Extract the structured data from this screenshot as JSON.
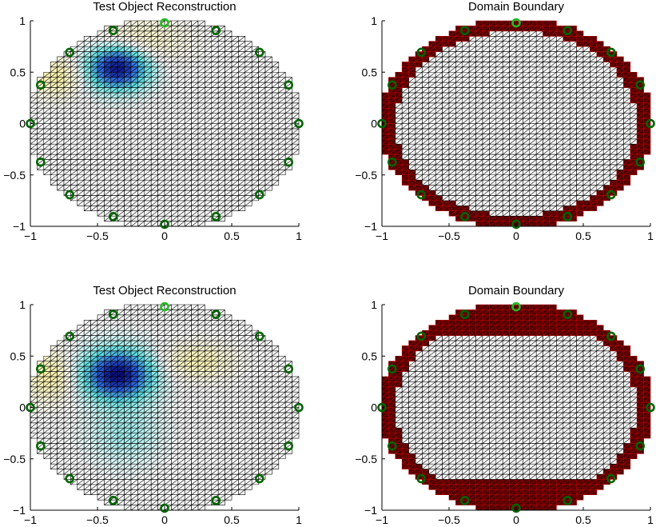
{
  "colors": {
    "mesh": "#000000",
    "boundary_fill": "#4d0000",
    "boundary_mesh": "#b00000",
    "electrode_ring": "#006400",
    "electrode_ring_active": "#22bb22",
    "inclusion_core": "#0a0a80",
    "inclusion_mid": "#2a5fd8",
    "inclusion_edge": "#5fe0e0",
    "positive_lobe": "#fff3a8"
  },
  "chart_data": [
    {
      "type": "mesh",
      "id": "plot-top-left",
      "title": "Test Object Reconstruction",
      "xlim": [
        -1,
        1
      ],
      "ylim": [
        -1,
        1
      ],
      "xticks": [
        -1,
        -0.5,
        0,
        0.5,
        1
      ],
      "xtick_labels": [
        "−1",
        "−0.5",
        "0",
        "0.5",
        "1"
      ],
      "yticks": [
        -1,
        -0.5,
        0,
        0.5,
        1
      ],
      "ytick_labels": [
        "−1",
        "−0.5",
        "0",
        "0.5",
        "1"
      ],
      "blobs": [
        {
          "cx": -0.35,
          "cy": 0.55,
          "rx": 0.26,
          "ry": 0.25,
          "sign": -1,
          "peak": 1.0
        },
        {
          "cx": -0.2,
          "cy": 0.8,
          "rx": 0.4,
          "ry": 0.25,
          "sign": 1,
          "peak": 0.25
        },
        {
          "cx": -0.8,
          "cy": 0.45,
          "rx": 0.2,
          "ry": 0.22,
          "sign": 1,
          "peak": 0.35
        }
      ],
      "electrodes": {
        "count": 16,
        "radius": 1.0,
        "active_index": 0
      }
    },
    {
      "type": "mesh",
      "id": "plot-top-right",
      "title": "Domain Boundary",
      "xlim": [
        -1,
        1
      ],
      "ylim": [
        -1,
        1
      ],
      "xticks": [
        -1,
        -0.5,
        0,
        0.5,
        1
      ],
      "xtick_labels": [
        "−1",
        "−0.5",
        "0",
        "0.5",
        "1"
      ],
      "yticks": [
        -1,
        -0.5,
        0,
        0.5,
        1
      ],
      "ytick_labels": [
        "−1",
        "−0.5",
        "0",
        "0.5",
        "1"
      ],
      "boundary": {
        "type": "ring",
        "rin": 0.9,
        "rout": 1.02
      },
      "electrodes": {
        "count": 16,
        "radius": 1.0,
        "active_index": 0
      }
    },
    {
      "type": "mesh",
      "id": "plot-bottom-left",
      "title": "Test Object Reconstruction",
      "xlim": [
        -1,
        1
      ],
      "ylim": [
        -1,
        1
      ],
      "xticks": [
        -1,
        -0.5,
        0,
        0.5,
        1
      ],
      "xtick_labels": [
        "−1",
        "−0.5",
        "0",
        "0.5",
        "1"
      ],
      "yticks": [
        -1,
        -0.5,
        0,
        0.5,
        1
      ],
      "ytick_labels": [
        "−1",
        "−0.5",
        "0",
        "0.5",
        "1"
      ],
      "blobs": [
        {
          "cx": -0.35,
          "cy": 0.32,
          "rx": 0.3,
          "ry": 0.28,
          "sign": -1,
          "peak": 1.0
        },
        {
          "cx": -0.3,
          "cy": -0.25,
          "rx": 0.3,
          "ry": 0.35,
          "sign": -1,
          "peak": 0.2
        },
        {
          "cx": 0.25,
          "cy": 0.45,
          "rx": 0.3,
          "ry": 0.2,
          "sign": 1,
          "peak": 0.3
        },
        {
          "cx": -0.85,
          "cy": 0.3,
          "rx": 0.2,
          "ry": 0.28,
          "sign": 1,
          "peak": 0.35
        }
      ],
      "electrodes": {
        "count": 16,
        "radius": 1.0,
        "active_index": 0
      }
    },
    {
      "type": "mesh",
      "id": "plot-bottom-right",
      "title": "Domain Boundary",
      "xlim": [
        -1,
        1
      ],
      "ylim": [
        -1,
        1
      ],
      "xticks": [
        -1,
        -0.5,
        0,
        0.5,
        1
      ],
      "xtick_labels": [
        "−1",
        "−0.5",
        "0",
        "0.5",
        "1"
      ],
      "yticks": [
        -1,
        -0.5,
        0,
        0.5,
        1
      ],
      "ytick_labels": [
        "−1",
        "−0.5",
        "0",
        "0.5",
        "1"
      ],
      "boundary": {
        "type": "bands",
        "rin": 0.9,
        "rout": 1.02,
        "top_band_y": 0.68,
        "bottom_band_y": -0.7
      },
      "electrodes": {
        "count": 16,
        "radius": 1.0,
        "active_index": 0
      }
    }
  ]
}
